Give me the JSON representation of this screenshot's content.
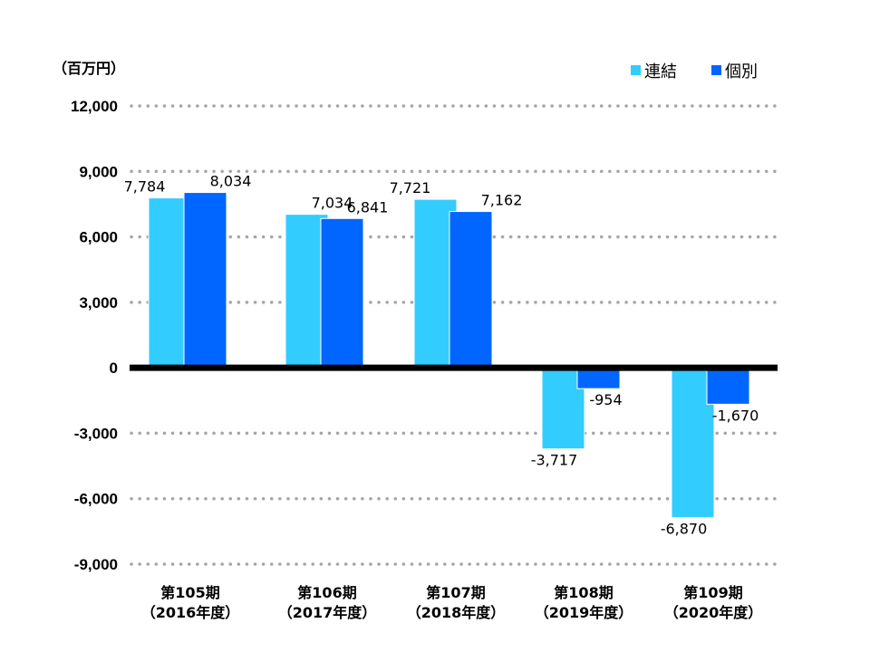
{
  "chart_data": {
    "type": "bar",
    "unit_label": "（百万円）",
    "categories": [
      [
        "第105期",
        "（2016年度）"
      ],
      [
        "第106期",
        "（2017年度）"
      ],
      [
        "第107期",
        "（2018年度）"
      ],
      [
        "第108期",
        "（2019年度）"
      ],
      [
        "第109期",
        "（2020年度）"
      ]
    ],
    "series": [
      {
        "name": "連結",
        "color": "#33CCFF",
        "values": [
          7784,
          7034,
          7721,
          -3717,
          -6870
        ],
        "labels": [
          "7,784",
          "7,034",
          "7,721",
          "-3,717",
          "-6,870"
        ]
      },
      {
        "name": "個別",
        "color": "#0066FF",
        "values": [
          8034,
          6841,
          7162,
          -954,
          -1670
        ],
        "labels": [
          "8,034",
          "6,841",
          "7,162",
          "-954",
          "-1,670"
        ]
      }
    ],
    "ylim": [
      -9000,
      12000
    ],
    "yticks": [
      12000,
      9000,
      6000,
      3000,
      0,
      -3000,
      -6000,
      -9000
    ],
    "ytick_labels": [
      "12,000",
      "9,000",
      "6,000",
      "3,000",
      "0",
      "-3,000",
      "-6,000",
      "-9,000"
    ],
    "grid": true,
    "legend_position": "top-right"
  }
}
